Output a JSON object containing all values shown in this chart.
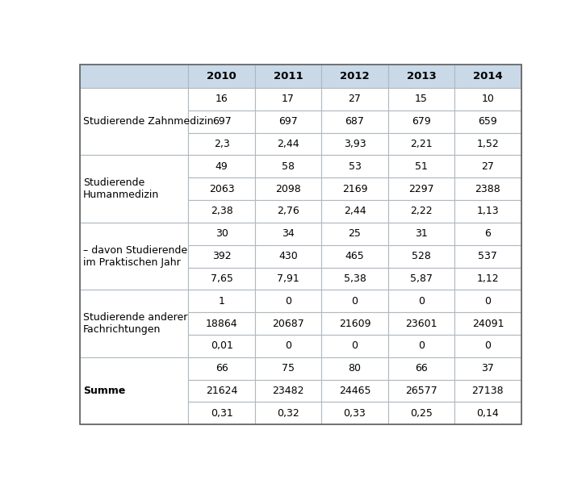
{
  "header_cols": [
    "",
    "2010",
    "2011",
    "2012",
    "2013",
    "2014"
  ],
  "sections": [
    {
      "label": "Studierende Zahnmedizin",
      "rows": [
        [
          "16",
          "17",
          "27",
          "15",
          "10"
        ],
        [
          "697",
          "697",
          "687",
          "679",
          "659"
        ],
        [
          "2,3",
          "2,44",
          "3,93",
          "2,21",
          "1,52"
        ]
      ]
    },
    {
      "label": "Studierende\nHumanmedizin",
      "rows": [
        [
          "49",
          "58",
          "53",
          "51",
          "27"
        ],
        [
          "2063",
          "2098",
          "2169",
          "2297",
          "2388"
        ],
        [
          "2,38",
          "2,76",
          "2,44",
          "2,22",
          "1,13"
        ]
      ]
    },
    {
      "label": "– davon Studierende\nim Praktischen Jahr",
      "rows": [
        [
          "30",
          "34",
          "25",
          "31",
          "6"
        ],
        [
          "392",
          "430",
          "465",
          "528",
          "537"
        ],
        [
          "7,65",
          "7,91",
          "5,38",
          "5,87",
          "1,12"
        ]
      ]
    },
    {
      "label": "Studierende anderer\nFachrichtungen",
      "rows": [
        [
          "1",
          "0",
          "0",
          "0",
          "0"
        ],
        [
          "18864",
          "20687",
          "21609",
          "23601",
          "24091"
        ],
        [
          "0,01",
          "0",
          "0",
          "0",
          "0"
        ]
      ]
    },
    {
      "label": "Summe",
      "rows": [
        [
          "66",
          "75",
          "80",
          "66",
          "37"
        ],
        [
          "21624",
          "23482",
          "24465",
          "26577",
          "27138"
        ],
        [
          "0,31",
          "0,32",
          "0,33",
          "0,25",
          "0,14"
        ]
      ]
    }
  ],
  "bg_header": "#c9d9e8",
  "bg_white": "#ffffff",
  "border_color": "#b0b8c0",
  "text_color": "#000000",
  "font_size": 9.0,
  "header_font_size": 9.5,
  "label_font_size": 9.0
}
